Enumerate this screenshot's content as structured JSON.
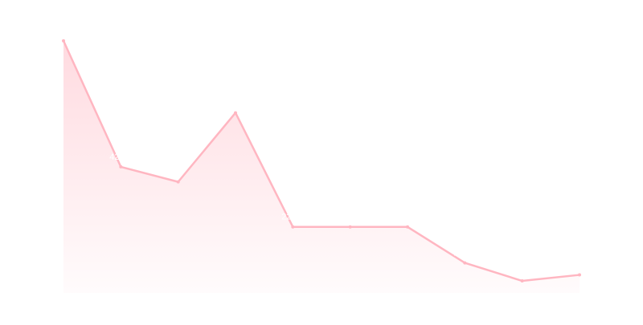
{
  "chart_data": {
    "type": "area",
    "values": [
      84,
      42,
      37,
      60,
      22,
      22,
      22,
      10,
      4,
      6
    ],
    "color": "#ffb6c1",
    "ylim": [
      0,
      90
    ]
  }
}
